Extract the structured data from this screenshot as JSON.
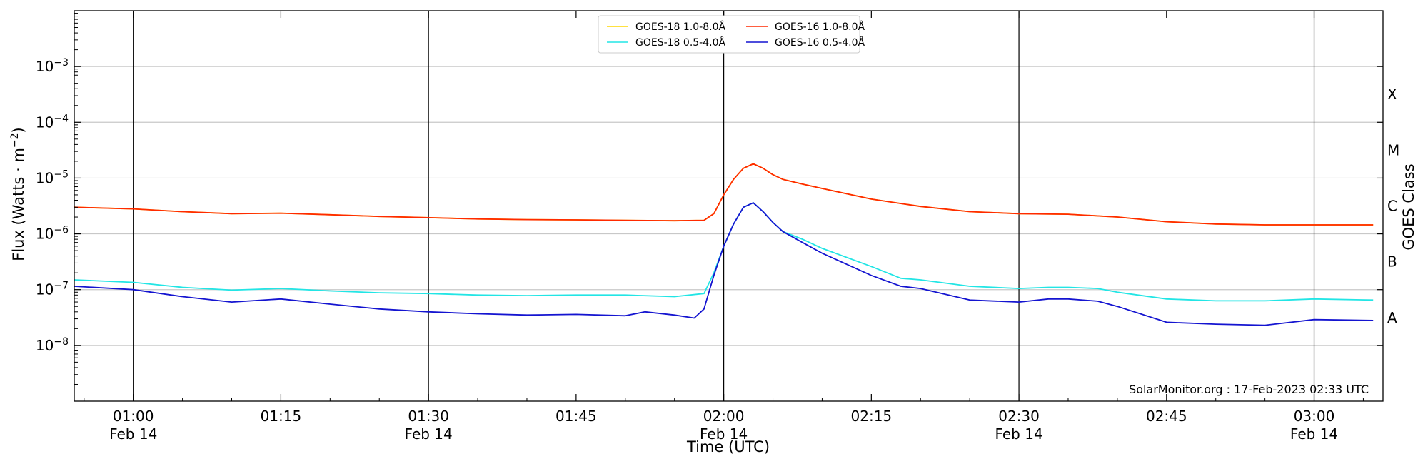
{
  "chart_data": {
    "type": "line",
    "title": "",
    "xlabel": "Time (UTC)",
    "ylabel": "Flux (Watts · m",
    "ylabel_sup": "−2",
    "ylabel_close": ")",
    "y2label": "GOES Class",
    "yscale": "log",
    "xlim": [
      "00:54",
      "03:07"
    ],
    "ylim": [
      1e-09,
      0.01
    ],
    "grid": "horizontal at decades, vertical at half hours",
    "legend_position": "top-center",
    "credit": "SolarMonitor.org : 17-Feb-2023 02:33 UTC",
    "x_ticks": [
      {
        "time": "01:00",
        "day": "Feb 14"
      },
      {
        "time": "01:15",
        "day": ""
      },
      {
        "time": "01:30",
        "day": "Feb 14"
      },
      {
        "time": "01:45",
        "day": ""
      },
      {
        "time": "02:00",
        "day": "Feb 14"
      },
      {
        "time": "02:15",
        "day": ""
      },
      {
        "time": "02:30",
        "day": "Feb 14"
      },
      {
        "time": "02:45",
        "day": ""
      },
      {
        "time": "03:00",
        "day": "Feb 14"
      }
    ],
    "y_ticks": [
      {
        "value": 1e-08,
        "base": "10",
        "exp": "−8"
      },
      {
        "value": 1e-07,
        "base": "10",
        "exp": "−7"
      },
      {
        "value": 1e-06,
        "base": "10",
        "exp": "−6"
      },
      {
        "value": 1e-05,
        "base": "10",
        "exp": "−5"
      },
      {
        "value": 0.0001,
        "base": "10",
        "exp": "−4"
      },
      {
        "value": 0.001,
        "base": "10",
        "exp": "−3"
      }
    ],
    "goes_classes": [
      {
        "label": "A",
        "flux": 1e-08
      },
      {
        "label": "B",
        "flux": 1e-07
      },
      {
        "label": "C",
        "flux": 1e-06
      },
      {
        "label": "M",
        "flux": 1e-05
      },
      {
        "label": "X",
        "flux": 0.0001
      }
    ],
    "legend": [
      {
        "label": "GOES-18 1.0-8.0Å",
        "color": "#ffd700"
      },
      {
        "label": "GOES-18 0.5-4.0Å",
        "color": "#22e5e5"
      },
      {
        "label": "GOES-16 1.0-8.0Å",
        "color": "#ff2a00"
      },
      {
        "label": "GOES-16 0.5-4.0Å",
        "color": "#1414d0"
      }
    ],
    "series": [
      {
        "name": "GOES-18 1.0-8.0Å",
        "color": "#ffd700",
        "x": [
          "00:54",
          "01:00",
          "01:05",
          "01:10",
          "01:15",
          "01:20",
          "01:25",
          "01:30",
          "01:35",
          "01:40",
          "01:45",
          "01:50",
          "01:55",
          "01:58",
          "01:59",
          "02:00",
          "02:01",
          "02:02",
          "02:03",
          "02:04",
          "02:05",
          "02:06",
          "02:08",
          "02:10",
          "02:15",
          "02:20",
          "02:25",
          "02:30",
          "02:35",
          "02:40",
          "02:45",
          "02:50",
          "02:55",
          "03:00",
          "03:06"
        ],
        "y": [
          3e-06,
          2.8e-06,
          2.5e-06,
          2.3e-06,
          2.35e-06,
          2.2e-06,
          2.05e-06,
          1.95e-06,
          1.85e-06,
          1.8e-06,
          1.78e-06,
          1.75e-06,
          1.72e-06,
          1.75e-06,
          2.3e-06,
          5e-06,
          9.5e-06,
          1.5e-05,
          1.8e-05,
          1.5e-05,
          1.15e-05,
          9.5e-06,
          7.8e-06,
          6.5e-06,
          4.2e-06,
          3.1e-06,
          2.5e-06,
          2.3e-06,
          2.25e-06,
          2e-06,
          1.65e-06,
          1.5e-06,
          1.45e-06,
          1.45e-06,
          1.45e-06
        ]
      },
      {
        "name": "GOES-16 1.0-8.0Å",
        "color": "#ff2a00",
        "x": [
          "00:54",
          "01:00",
          "01:05",
          "01:10",
          "01:15",
          "01:20",
          "01:25",
          "01:30",
          "01:35",
          "01:40",
          "01:45",
          "01:50",
          "01:55",
          "01:58",
          "01:59",
          "02:00",
          "02:01",
          "02:02",
          "02:03",
          "02:04",
          "02:05",
          "02:06",
          "02:08",
          "02:10",
          "02:15",
          "02:20",
          "02:25",
          "02:30",
          "02:35",
          "02:40",
          "02:45",
          "02:50",
          "02:55",
          "03:00",
          "03:06"
        ],
        "y": [
          3e-06,
          2.8e-06,
          2.5e-06,
          2.3e-06,
          2.35e-06,
          2.2e-06,
          2.05e-06,
          1.95e-06,
          1.85e-06,
          1.8e-06,
          1.78e-06,
          1.75e-06,
          1.72e-06,
          1.75e-06,
          2.3e-06,
          5e-06,
          9.5e-06,
          1.5e-05,
          1.8e-05,
          1.5e-05,
          1.15e-05,
          9.5e-06,
          7.8e-06,
          6.5e-06,
          4.2e-06,
          3.1e-06,
          2.5e-06,
          2.3e-06,
          2.25e-06,
          2e-06,
          1.65e-06,
          1.5e-06,
          1.45e-06,
          1.45e-06,
          1.45e-06
        ]
      },
      {
        "name": "GOES-18 0.5-4.0Å",
        "color": "#22e5e5",
        "x": [
          "00:54",
          "01:00",
          "01:05",
          "01:10",
          "01:15",
          "01:20",
          "01:25",
          "01:30",
          "01:35",
          "01:40",
          "01:45",
          "01:50",
          "01:55",
          "01:58",
          "01:59",
          "02:00",
          "02:01",
          "02:02",
          "02:03",
          "02:04",
          "02:05",
          "02:06",
          "02:08",
          "02:10",
          "02:15",
          "02:18",
          "02:20",
          "02:25",
          "02:30",
          "02:33",
          "02:35",
          "02:38",
          "02:40",
          "02:45",
          "02:50",
          "02:55",
          "03:00",
          "03:06"
        ],
        "y": [
          1.5e-07,
          1.35e-07,
          1.1e-07,
          9.8e-08,
          1.05e-07,
          9.5e-08,
          8.8e-08,
          8.5e-08,
          8e-08,
          7.8e-08,
          8e-08,
          8e-08,
          7.5e-08,
          8.5e-08,
          2e-07,
          6e-07,
          1.5e-06,
          3e-06,
          3.6e-06,
          2.5e-06,
          1.6e-06,
          1.1e-06,
          8e-07,
          5.5e-07,
          2.6e-07,
          1.6e-07,
          1.5e-07,
          1.15e-07,
          1.05e-07,
          1.1e-07,
          1.1e-07,
          1.05e-07,
          9e-08,
          6.8e-08,
          6.3e-08,
          6.3e-08,
          6.8e-08,
          6.5e-08
        ]
      },
      {
        "name": "GOES-16 0.5-4.0Å",
        "color": "#1414d0",
        "x": [
          "00:54",
          "01:00",
          "01:05",
          "01:10",
          "01:15",
          "01:20",
          "01:25",
          "01:30",
          "01:35",
          "01:40",
          "01:45",
          "01:50",
          "01:52",
          "01:55",
          "01:57",
          "01:58",
          "01:59",
          "02:00",
          "02:01",
          "02:02",
          "02:03",
          "02:04",
          "02:05",
          "02:06",
          "02:08",
          "02:10",
          "02:15",
          "02:18",
          "02:20",
          "02:25",
          "02:30",
          "02:33",
          "02:35",
          "02:38",
          "02:40",
          "02:45",
          "02:50",
          "02:55",
          "03:00",
          "03:06"
        ],
        "y": [
          1.15e-07,
          1e-07,
          7.5e-08,
          6e-08,
          6.8e-08,
          5.5e-08,
          4.5e-08,
          4e-08,
          3.7e-08,
          3.5e-08,
          3.6e-08,
          3.4e-08,
          4e-08,
          3.5e-08,
          3.1e-08,
          4.5e-08,
          1.8e-07,
          6e-07,
          1.5e-06,
          3e-06,
          3.6e-06,
          2.5e-06,
          1.6e-06,
          1.1e-06,
          7e-07,
          4.5e-07,
          1.8e-07,
          1.15e-07,
          1.05e-07,
          6.5e-08,
          6e-08,
          6.8e-08,
          6.8e-08,
          6.2e-08,
          5e-08,
          2.6e-08,
          2.4e-08,
          2.3e-08,
          2.9e-08,
          2.8e-08
        ]
      }
    ]
  }
}
